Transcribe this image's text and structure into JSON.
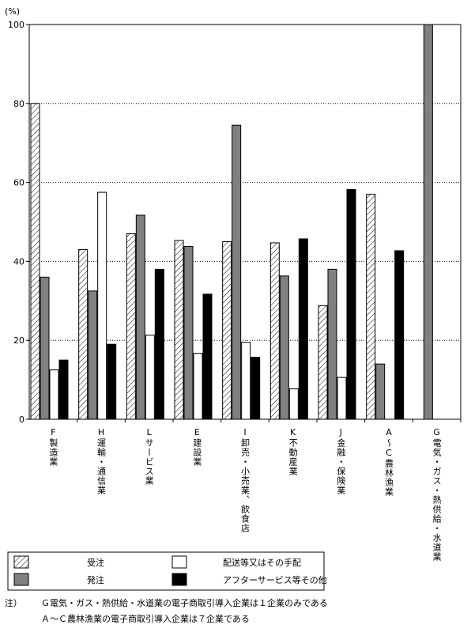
{
  "chart_data": {
    "type": "bar",
    "y_axis_label": "(%)",
    "categories": [
      "F製造業",
      "H運輸・通信業",
      "Lサービス業",
      "E建設業",
      "I卸売・小売業、飲食店",
      "K不動産業",
      "J金融・保険業",
      "A〜C農林漁業",
      "G電気・ガス・熱供給・水道業"
    ],
    "series": [
      {
        "name": "受注",
        "color": "#ffffff",
        "pattern": "hatch",
        "values": [
          80,
          43,
          47,
          45.3,
          45,
          44.7,
          28.8,
          57,
          0
        ]
      },
      {
        "name": "発注",
        "color": "#808080",
        "values": [
          36,
          32.5,
          51.7,
          43.8,
          74.5,
          36.3,
          38,
          14,
          100
        ]
      },
      {
        "name": "配送等又はその手配",
        "color": "#ffffff",
        "values": [
          12.5,
          57.5,
          21.3,
          16.7,
          19.5,
          7.7,
          10.6,
          0,
          0
        ]
      },
      {
        "name": "アフターサービス等その他",
        "color": "#000000",
        "values": [
          15,
          19,
          38,
          31.7,
          15.7,
          45.7,
          58.2,
          42.7,
          0
        ]
      }
    ],
    "ylim": [
      0,
      100
    ],
    "yticks": [
      0,
      20,
      40,
      60,
      80,
      100
    ],
    "grid": true,
    "note_label": "注）",
    "notes": [
      "Ｇ電気・ガス・熱供給・水道業の電子商取引導入企業は１企業のみである",
      "Ａ〜Ｃ農林漁業の電子商取引導入企業は７企業である"
    ]
  }
}
